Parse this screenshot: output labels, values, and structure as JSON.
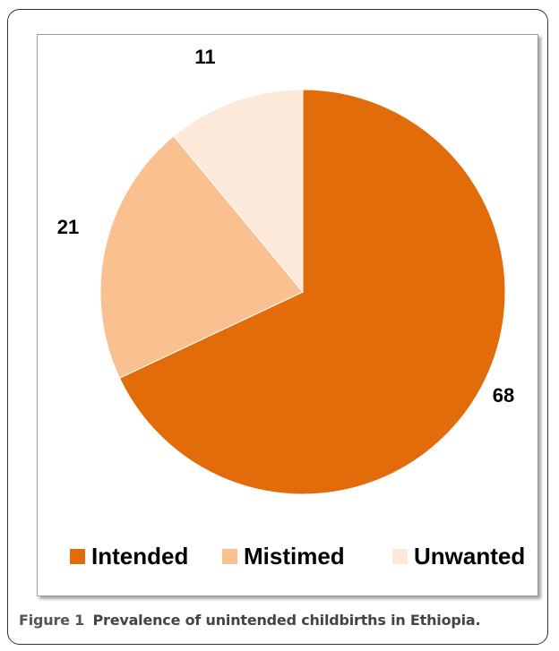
{
  "chart_data": {
    "type": "pie",
    "title": "",
    "slices": [
      {
        "name": "Intended",
        "value": 68,
        "label": "68",
        "color": "#E36C0A"
      },
      {
        "name": "Mistimed",
        "value": 21,
        "label": "21",
        "color": "#FAC090"
      },
      {
        "name": "Unwanted",
        "value": 11,
        "label": "11",
        "color": "#FDE9D9"
      }
    ],
    "legend_position": "bottom",
    "start_angle": "12 o'clock",
    "direction": "clockwise"
  },
  "caption": {
    "label": "Figure 1",
    "text": "Prevalence of unintended childbirths in Ethiopia."
  }
}
